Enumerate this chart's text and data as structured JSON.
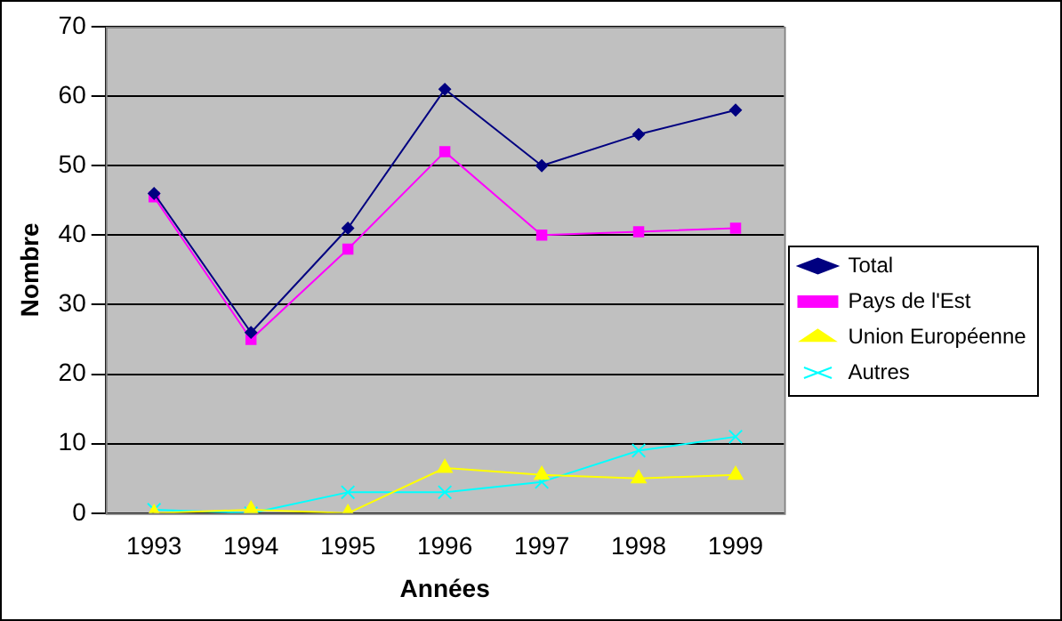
{
  "chart_data": {
    "type": "line",
    "xlabel": "Années",
    "ylabel": "Nombre",
    "categories": [
      "1993",
      "1994",
      "1995",
      "1996",
      "1997",
      "1998",
      "1999"
    ],
    "series": [
      {
        "name": "Total",
        "color": "#000080",
        "marker": "diamond",
        "values": [
          46,
          26,
          41,
          61,
          50,
          54.5,
          58
        ]
      },
      {
        "name": "Pays de l'Est",
        "color": "#ff00ff",
        "marker": "square",
        "values": [
          45.5,
          25,
          38,
          52,
          40,
          40.5,
          41
        ]
      },
      {
        "name": "Union Européenne",
        "color": "#ffff00",
        "marker": "triangle",
        "values": [
          0,
          0.5,
          0,
          6.5,
          5.5,
          5,
          5.5
        ]
      },
      {
        "name": "Autres",
        "color": "#00ffff",
        "marker": "cross",
        "values": [
          0.5,
          0,
          3,
          3,
          4.5,
          9,
          11
        ]
      }
    ],
    "ylim": [
      0,
      70
    ],
    "yticks": [
      0,
      10,
      20,
      30,
      40,
      50,
      60,
      70
    ],
    "grid": "y",
    "legend": "right"
  }
}
